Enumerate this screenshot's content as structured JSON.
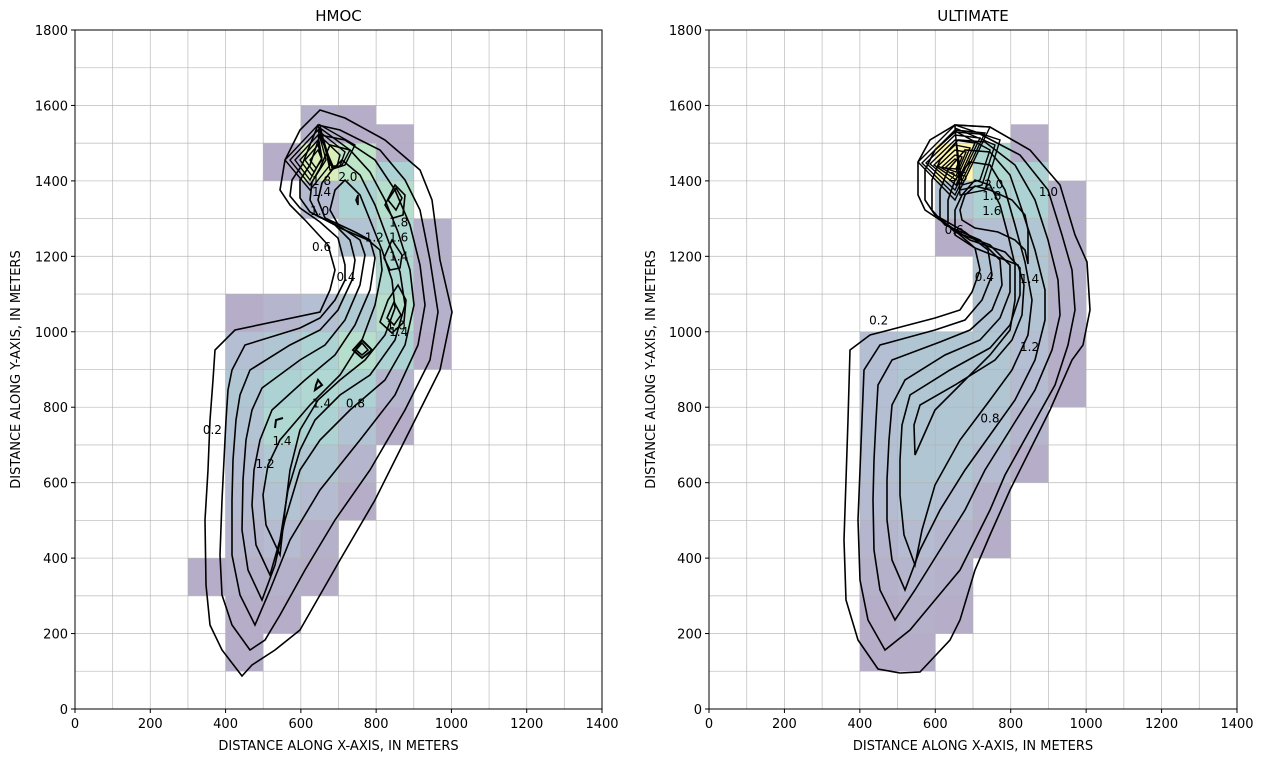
{
  "chart_data": [
    {
      "type": "heatmap",
      "title": "HMOC",
      "xlabel": "DISTANCE ALONG X-AXIS, IN METERS",
      "ylabel": "DISTANCE ALONG Y-AXIS, IN METERS",
      "xlim": [
        0,
        1400
      ],
      "ylim": [
        0,
        1800
      ],
      "xticks": [
        0,
        200,
        400,
        600,
        800,
        1000,
        1200,
        1400
      ],
      "yticks": [
        0,
        200,
        400,
        600,
        800,
        1000,
        1200,
        1400,
        1600,
        1800
      ],
      "grid": true,
      "grid_spacing": 100,
      "cell_size": 100,
      "cells": [
        {
          "x": 400,
          "y": 100,
          "v": 0.3
        },
        {
          "x": 400,
          "y": 200,
          "v": 0.3
        },
        {
          "x": 500,
          "y": 200,
          "v": 0.3
        },
        {
          "x": 300,
          "y": 300,
          "v": 0.3
        },
        {
          "x": 400,
          "y": 300,
          "v": 0.4
        },
        {
          "x": 500,
          "y": 300,
          "v": 0.4
        },
        {
          "x": 600,
          "y": 300,
          "v": 0.3
        },
        {
          "x": 400,
          "y": 400,
          "v": 0.5
        },
        {
          "x": 500,
          "y": 400,
          "v": 0.6
        },
        {
          "x": 600,
          "y": 400,
          "v": 0.4
        },
        {
          "x": 400,
          "y": 500,
          "v": 0.6
        },
        {
          "x": 500,
          "y": 500,
          "v": 0.8
        },
        {
          "x": 600,
          "y": 500,
          "v": 0.6
        },
        {
          "x": 700,
          "y": 500,
          "v": 0.3
        },
        {
          "x": 400,
          "y": 600,
          "v": 0.7
        },
        {
          "x": 500,
          "y": 600,
          "v": 1.0
        },
        {
          "x": 600,
          "y": 600,
          "v": 0.9
        },
        {
          "x": 700,
          "y": 600,
          "v": 0.5
        },
        {
          "x": 400,
          "y": 700,
          "v": 0.8
        },
        {
          "x": 500,
          "y": 700,
          "v": 1.4
        },
        {
          "x": 600,
          "y": 700,
          "v": 1.2
        },
        {
          "x": 700,
          "y": 700,
          "v": 0.8
        },
        {
          "x": 800,
          "y": 700,
          "v": 0.3
        },
        {
          "x": 400,
          "y": 800,
          "v": 0.9
        },
        {
          "x": 500,
          "y": 800,
          "v": 1.2
        },
        {
          "x": 600,
          "y": 800,
          "v": 1.4
        },
        {
          "x": 700,
          "y": 800,
          "v": 1.2
        },
        {
          "x": 800,
          "y": 800,
          "v": 0.5
        },
        {
          "x": 400,
          "y": 900,
          "v": 0.7
        },
        {
          "x": 500,
          "y": 900,
          "v": 0.9
        },
        {
          "x": 600,
          "y": 900,
          "v": 1.2
        },
        {
          "x": 700,
          "y": 900,
          "v": 1.6
        },
        {
          "x": 800,
          "y": 900,
          "v": 1.2
        },
        {
          "x": 900,
          "y": 900,
          "v": 0.3
        },
        {
          "x": 400,
          "y": 1000,
          "v": 0.3
        },
        {
          "x": 500,
          "y": 1000,
          "v": 0.5
        },
        {
          "x": 600,
          "y": 1000,
          "v": 0.7
        },
        {
          "x": 700,
          "y": 1000,
          "v": 1.0
        },
        {
          "x": 800,
          "y": 1000,
          "v": 1.6
        },
        {
          "x": 900,
          "y": 1000,
          "v": 0.4
        },
        {
          "x": 800,
          "y": 1100,
          "v": 1.4
        },
        {
          "x": 900,
          "y": 1100,
          "v": 0.4
        },
        {
          "x": 700,
          "y": 1200,
          "v": 0.8
        },
        {
          "x": 800,
          "y": 1200,
          "v": 1.4
        },
        {
          "x": 900,
          "y": 1200,
          "v": 0.4
        },
        {
          "x": 600,
          "y": 1300,
          "v": 0.6
        },
        {
          "x": 700,
          "y": 1300,
          "v": 1.2
        },
        {
          "x": 800,
          "y": 1300,
          "v": 1.6
        },
        {
          "x": 600,
          "y": 1400,
          "v": 2.2
        },
        {
          "x": 700,
          "y": 1400,
          "v": 1.8
        },
        {
          "x": 800,
          "y": 1400,
          "v": 1.2
        },
        {
          "x": 500,
          "y": 1400,
          "v": 0.3
        },
        {
          "x": 800,
          "y": 1450,
          "v": 0.3
        },
        {
          "x": 600,
          "y": 1500,
          "v": 0.4
        },
        {
          "x": 700,
          "y": 1500,
          "v": 0.3
        }
      ],
      "contour_levels": [
        0.2,
        0.4,
        0.6,
        0.8,
        1.0,
        1.2,
        1.4,
        1.6,
        1.8
      ],
      "contour_labels": [
        {
          "text": "0.2",
          "x": 365,
          "y": 740
        },
        {
          "text": "0.4",
          "x": 720,
          "y": 1145
        },
        {
          "text": "0.6",
          "x": 655,
          "y": 1225
        },
        {
          "text": "0.8",
          "x": 745,
          "y": 810
        },
        {
          "text": "1.0",
          "x": 650,
          "y": 1320
        },
        {
          "text": "1.0",
          "x": 853,
          "y": 1017
        },
        {
          "text": "1.2",
          "x": 505,
          "y": 650
        },
        {
          "text": "1.2",
          "x": 795,
          "y": 1250
        },
        {
          "text": "1.4",
          "x": 550,
          "y": 710
        },
        {
          "text": "1.4",
          "x": 655,
          "y": 810
        },
        {
          "text": "1.4",
          "x": 655,
          "y": 1370
        },
        {
          "text": "1.4",
          "x": 860,
          "y": 1200
        },
        {
          "text": "1.4",
          "x": 860,
          "y": 1000
        },
        {
          "text": "1.6",
          "x": 860,
          "y": 1250
        },
        {
          "text": "1.8",
          "x": 860,
          "y": 1290
        },
        {
          "text": "1.8",
          "x": 655,
          "y": 1400
        },
        {
          "text": "2.0",
          "x": 725,
          "y": 1410
        }
      ]
    },
    {
      "type": "heatmap",
      "title": "ULTIMATE",
      "xlabel": "DISTANCE ALONG X-AXIS, IN METERS",
      "ylabel": "DISTANCE ALONG Y-AXIS, IN METERS",
      "xlim": [
        0,
        1400
      ],
      "ylim": [
        0,
        1800
      ],
      "xticks": [
        0,
        200,
        400,
        600,
        800,
        1000,
        1200,
        1400
      ],
      "yticks": [
        0,
        200,
        400,
        600,
        800,
        1000,
        1200,
        1400,
        1600,
        1800
      ],
      "grid": true,
      "grid_spacing": 100,
      "cell_size": 100,
      "cells": [
        {
          "x": 400,
          "y": 100,
          "v": 0.3
        },
        {
          "x": 500,
          "y": 100,
          "v": 0.3
        },
        {
          "x": 400,
          "y": 200,
          "v": 0.3
        },
        {
          "x": 500,
          "y": 200,
          "v": 0.4
        },
        {
          "x": 600,
          "y": 200,
          "v": 0.3
        },
        {
          "x": 400,
          "y": 300,
          "v": 0.4
        },
        {
          "x": 500,
          "y": 300,
          "v": 0.5
        },
        {
          "x": 600,
          "y": 300,
          "v": 0.4
        },
        {
          "x": 400,
          "y": 400,
          "v": 0.5
        },
        {
          "x": 500,
          "y": 400,
          "v": 0.6
        },
        {
          "x": 600,
          "y": 400,
          "v": 0.5
        },
        {
          "x": 700,
          "y": 400,
          "v": 0.3
        },
        {
          "x": 400,
          "y": 500,
          "v": 0.6
        },
        {
          "x": 500,
          "y": 500,
          "v": 0.8
        },
        {
          "x": 600,
          "y": 500,
          "v": 0.7
        },
        {
          "x": 700,
          "y": 500,
          "v": 0.4
        },
        {
          "x": 400,
          "y": 600,
          "v": 0.7
        },
        {
          "x": 500,
          "y": 600,
          "v": 0.9
        },
        {
          "x": 600,
          "y": 600,
          "v": 0.9
        },
        {
          "x": 700,
          "y": 600,
          "v": 0.6
        },
        {
          "x": 800,
          "y": 600,
          "v": 0.3
        },
        {
          "x": 400,
          "y": 700,
          "v": 0.7
        },
        {
          "x": 500,
          "y": 700,
          "v": 0.9
        },
        {
          "x": 600,
          "y": 700,
          "v": 0.9
        },
        {
          "x": 700,
          "y": 700,
          "v": 0.8
        },
        {
          "x": 800,
          "y": 700,
          "v": 0.5
        },
        {
          "x": 400,
          "y": 800,
          "v": 0.7
        },
        {
          "x": 500,
          "y": 800,
          "v": 0.9
        },
        {
          "x": 600,
          "y": 800,
          "v": 0.9
        },
        {
          "x": 700,
          "y": 800,
          "v": 0.9
        },
        {
          "x": 800,
          "y": 800,
          "v": 0.6
        },
        {
          "x": 900,
          "y": 800,
          "v": 0.3
        },
        {
          "x": 400,
          "y": 900,
          "v": 0.7
        },
        {
          "x": 500,
          "y": 900,
          "v": 0.9
        },
        {
          "x": 600,
          "y": 900,
          "v": 0.9
        },
        {
          "x": 700,
          "y": 900,
          "v": 0.9
        },
        {
          "x": 800,
          "y": 900,
          "v": 0.7
        },
        {
          "x": 900,
          "y": 900,
          "v": 0.3
        },
        {
          "x": 700,
          "y": 1000,
          "v": 0.8
        },
        {
          "x": 800,
          "y": 1000,
          "v": 0.8
        },
        {
          "x": 900,
          "y": 1000,
          "v": 0.4
        },
        {
          "x": 700,
          "y": 1100,
          "v": 0.8
        },
        {
          "x": 800,
          "y": 1100,
          "v": 0.9
        },
        {
          "x": 900,
          "y": 1100,
          "v": 0.4
        },
        {
          "x": 600,
          "y": 1200,
          "v": 0.3
        },
        {
          "x": 700,
          "y": 1200,
          "v": 0.7
        },
        {
          "x": 800,
          "y": 1200,
          "v": 0.9
        },
        {
          "x": 900,
          "y": 1200,
          "v": 0.4
        },
        {
          "x": 600,
          "y": 1300,
          "v": 0.8
        },
        {
          "x": 700,
          "y": 1300,
          "v": 1.2
        },
        {
          "x": 800,
          "y": 1300,
          "v": 1.2
        },
        {
          "x": 900,
          "y": 1300,
          "v": 0.4
        },
        {
          "x": 600,
          "y": 1400,
          "v": 2.6
        },
        {
          "x": 700,
          "y": 1400,
          "v": 1.4
        },
        {
          "x": 800,
          "y": 1400,
          "v": 1.2
        },
        {
          "x": 800,
          "y": 1450,
          "v": 0.3
        }
      ],
      "contour_levels": [
        0.2,
        0.4,
        0.6,
        0.8,
        1.0,
        1.2,
        1.4,
        1.6,
        1.8
      ],
      "contour_labels": [
        {
          "text": "0.2",
          "x": 450,
          "y": 1030
        },
        {
          "text": "0.4",
          "x": 730,
          "y": 1145
        },
        {
          "text": "0.6",
          "x": 650,
          "y": 1270
        },
        {
          "text": "0.8",
          "x": 745,
          "y": 770
        },
        {
          "text": "1.0",
          "x": 900,
          "y": 1370
        },
        {
          "text": "1.2",
          "x": 850,
          "y": 960
        },
        {
          "text": "1.4",
          "x": 850,
          "y": 1140
        },
        {
          "text": "1.6",
          "x": 750,
          "y": 1320
        },
        {
          "text": "1.8",
          "x": 750,
          "y": 1360
        },
        {
          "text": "2.0",
          "x": 755,
          "y": 1390
        },
        {
          "text": "2.6",
          "x": 660,
          "y": 1410
        }
      ]
    }
  ]
}
